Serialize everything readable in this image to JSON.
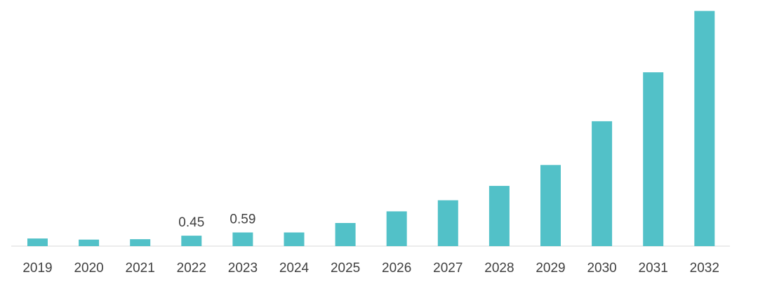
{
  "chart_data": {
    "type": "bar",
    "categories": [
      "2019",
      "2020",
      "2021",
      "2022",
      "2023",
      "2024",
      "2025",
      "2026",
      "2027",
      "2028",
      "2029",
      "2030",
      "2031",
      "2032"
    ],
    "values": [
      0.33,
      0.28,
      0.3,
      0.45,
      0.59,
      0.59,
      1.0,
      1.5,
      1.98,
      2.6,
      3.5,
      5.39,
      7.5,
      10.15
    ],
    "data_labels": [
      "",
      "",
      "",
      "0.45",
      "0.59",
      "",
      "",
      "",
      "",
      "",
      "",
      "",
      "",
      ""
    ],
    "title": "",
    "xlabel": "",
    "ylabel": "",
    "ylim": [
      0,
      10.5
    ],
    "grid": false,
    "legend": "none",
    "colors": {
      "bar": "#52c1c8",
      "axis": "#e6e6e6",
      "text": "#404040"
    }
  }
}
